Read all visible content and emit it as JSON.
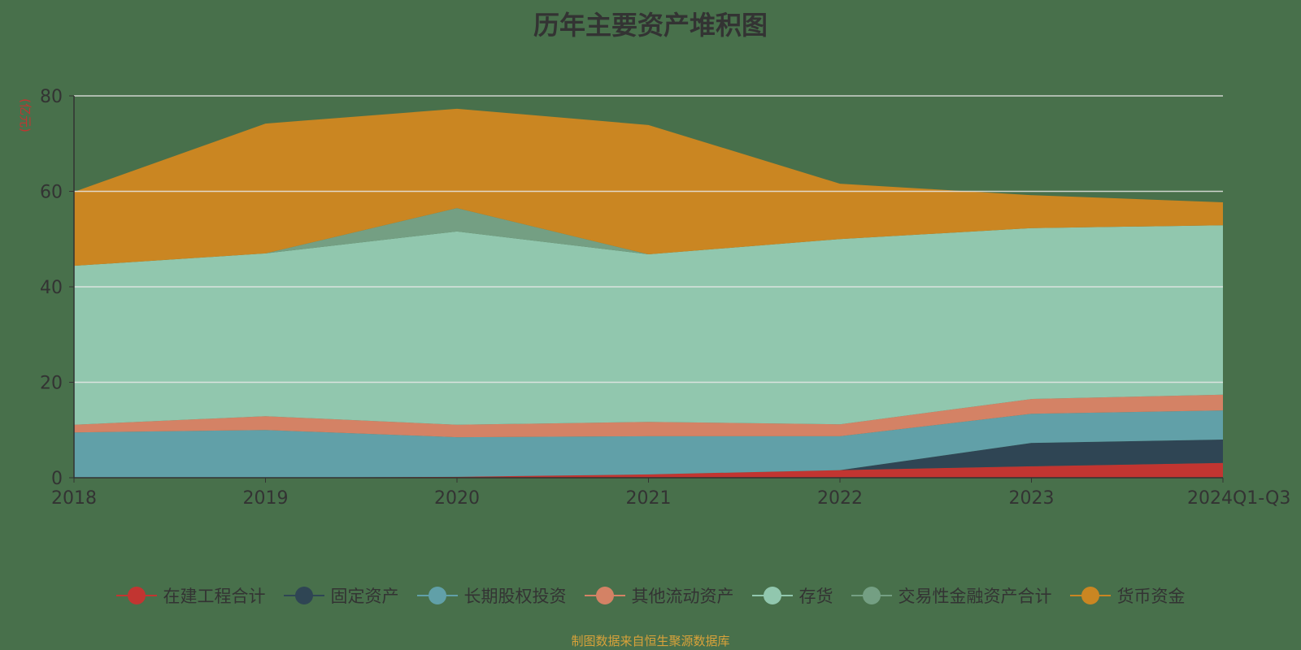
{
  "title": "历年主要资产堆积图",
  "source": "制图数据来自恒生聚源数据库",
  "chart_data": {
    "type": "area",
    "stacked": true,
    "title": "历年主要资产堆积图",
    "ylabel": "(亿元)",
    "xlabel": "",
    "categories": [
      "2018",
      "2019",
      "2020",
      "2021",
      "2022",
      "2023",
      "2024Q1-Q3"
    ],
    "ylim": [
      0,
      80
    ],
    "yticks": [
      0,
      20,
      40,
      60,
      80
    ],
    "grid": true,
    "legend_position": "bottom",
    "series": [
      {
        "name": "在建工程合计",
        "color": "#c23531",
        "values": [
          0,
          0,
          0.2,
          0.7,
          1.6,
          2.4,
          3.1
        ]
      },
      {
        "name": "固定资产",
        "color": "#2f4554",
        "values": [
          0,
          0,
          0,
          0,
          0,
          4.9,
          4.9
        ]
      },
      {
        "name": "长期股权投资",
        "color": "#61a0a8",
        "values": [
          9.5,
          10.0,
          8.3,
          8.0,
          7.1,
          6.1,
          6.1
        ]
      },
      {
        "name": "其他流动资产",
        "color": "#d48265",
        "values": [
          1.6,
          2.9,
          2.6,
          3.0,
          2.5,
          3.1,
          3.3
        ]
      },
      {
        "name": "存货",
        "color": "#91c7ae",
        "values": [
          33.3,
          34.1,
          40.5,
          35.1,
          38.8,
          35.8,
          35.5
        ]
      },
      {
        "name": "交易性金融资产合计",
        "color": "#749f83",
        "values": [
          0,
          0,
          4.9,
          0,
          0,
          0,
          0
        ]
      },
      {
        "name": "货币资金",
        "color": "#ca8622",
        "values": [
          15.5,
          27.2,
          20.8,
          27.1,
          11.6,
          6.9,
          4.8
        ]
      }
    ]
  }
}
